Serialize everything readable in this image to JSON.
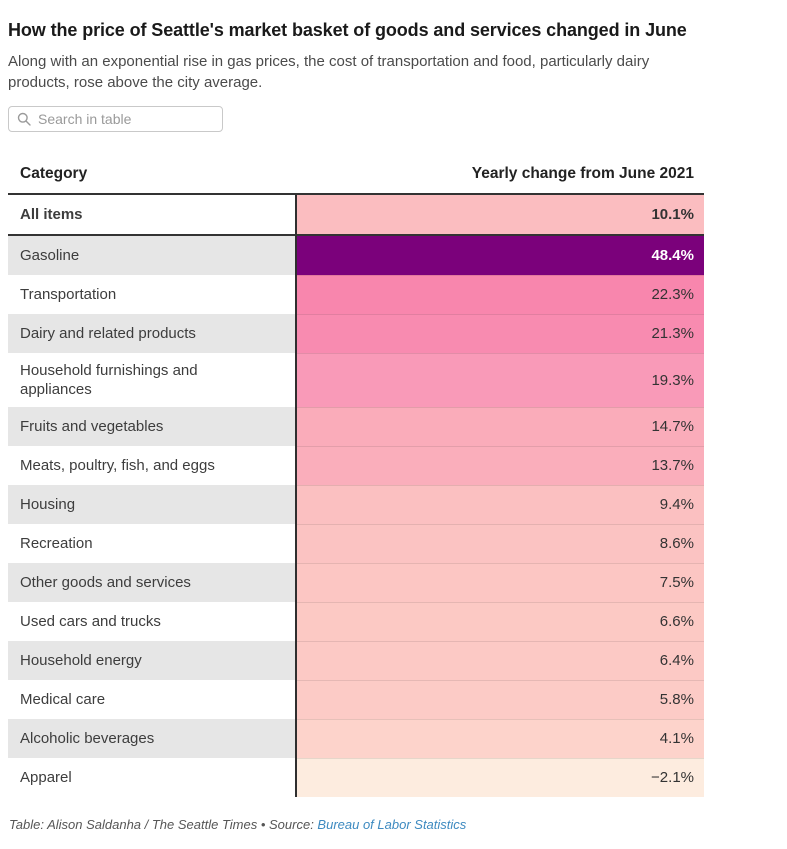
{
  "header": {
    "title": "How the price of Seattle's market basket of goods and services changed in June",
    "subtitle": "Along with an exponential rise in gas prices, the cost of transportation and food, particularly dairy products, rose above the city average."
  },
  "search": {
    "placeholder": "Search in table",
    "value": ""
  },
  "table": {
    "columns": {
      "category": "Category",
      "value": "Yearly change from June 2021"
    },
    "rows": [
      {
        "category": "All items",
        "value": "10.1%",
        "bg": "#fbbdc0",
        "color": "#333333",
        "bold": true,
        "zebra": "white"
      },
      {
        "category": "Gasoline",
        "value": "48.4%",
        "bg": "#7b017b",
        "color": "#ffffff",
        "bold": true,
        "zebra": "gray"
      },
      {
        "category": "Transportation",
        "value": "22.3%",
        "bg": "#f886ad",
        "color": "#333333",
        "bold": false,
        "zebra": "white"
      },
      {
        "category": "Dairy and related products",
        "value": "21.3%",
        "bg": "#f88bb0",
        "color": "#333333",
        "bold": false,
        "zebra": "gray"
      },
      {
        "category": "Household furnishings and appliances",
        "value": "19.3%",
        "bg": "#f99ab8",
        "color": "#333333",
        "bold": false,
        "zebra": "white"
      },
      {
        "category": "Fruits and vegetables",
        "value": "14.7%",
        "bg": "#faacba",
        "color": "#333333",
        "bold": false,
        "zebra": "gray"
      },
      {
        "category": "Meats, poultry, fish, and eggs",
        "value": "13.7%",
        "bg": "#faaebb",
        "color": "#333333",
        "bold": false,
        "zebra": "white"
      },
      {
        "category": "Housing",
        "value": "9.4%",
        "bg": "#fbc0c1",
        "color": "#333333",
        "bold": false,
        "zebra": "gray"
      },
      {
        "category": "Recreation",
        "value": "8.6%",
        "bg": "#fbc3c2",
        "color": "#333333",
        "bold": false,
        "zebra": "white"
      },
      {
        "category": "Other goods and services",
        "value": "7.5%",
        "bg": "#fcc6c3",
        "color": "#333333",
        "bold": false,
        "zebra": "gray"
      },
      {
        "category": "Used cars and trucks",
        "value": "6.6%",
        "bg": "#fcc9c4",
        "color": "#333333",
        "bold": false,
        "zebra": "white"
      },
      {
        "category": "Household energy",
        "value": "6.4%",
        "bg": "#fcc9c5",
        "color": "#333333",
        "bold": false,
        "zebra": "gray"
      },
      {
        "category": "Medical care",
        "value": "5.8%",
        "bg": "#fccbc6",
        "color": "#333333",
        "bold": false,
        "zebra": "white"
      },
      {
        "category": "Alcoholic beverages",
        "value": "4.1%",
        "bg": "#fdd3cb",
        "color": "#333333",
        "bold": false,
        "zebra": "gray"
      },
      {
        "category": "Apparel",
        "value": "−2.1%",
        "bg": "#fdecdf",
        "color": "#333333",
        "bold": false,
        "zebra": "white"
      }
    ]
  },
  "footer": {
    "credit_prefix": "Table: Alison Saldanha / The Seattle Times • Source: ",
    "source_link": "Bureau of Labor Statistics"
  },
  "colors": {
    "header_border": "#333333",
    "column_divider": "#2f2f2f",
    "zebra_gray": "#e6e6e6",
    "link_blue": "#3d8ac0",
    "max_purple": "#7b017b"
  },
  "chart_data": {
    "type": "table",
    "title": "How the price of Seattle's market basket of goods and services changed in June",
    "subtitle": "Along with an exponential rise in gas prices, the cost of transportation and food, particularly dairy products, rose above the city average.",
    "columns": [
      "Category",
      "Yearly change from June 2021"
    ],
    "categories": [
      "All items",
      "Gasoline",
      "Transportation",
      "Dairy and related products",
      "Household furnishings and appliances",
      "Fruits and vegetables",
      "Meats, poultry, fish, and eggs",
      "Housing",
      "Recreation",
      "Other goods and services",
      "Used cars and trucks",
      "Household energy",
      "Medical care",
      "Alcoholic beverages",
      "Apparel"
    ],
    "values_percent": [
      10.1,
      48.4,
      22.3,
      21.3,
      19.3,
      14.7,
      13.7,
      9.4,
      8.6,
      7.5,
      6.6,
      6.4,
      5.8,
      4.1,
      -2.1
    ],
    "value_format": "percent, one decimal",
    "heatmap": "sequential pink-to-purple by value, cream for negative",
    "notes": "first row (All items) bold with dark bottom border; rows zebra-striped in category column",
    "source": "Bureau of Labor Statistics",
    "credit": "Table: Alison Saldanha / The Seattle Times"
  }
}
